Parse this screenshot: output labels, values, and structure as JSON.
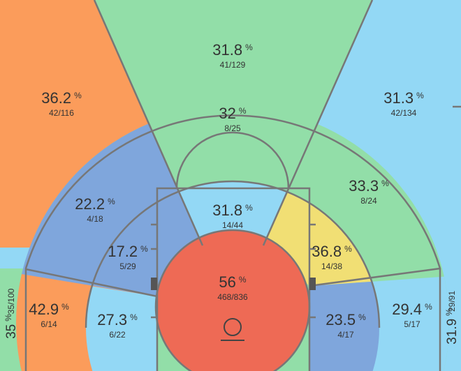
{
  "pct_unit": "%",
  "zones": [
    {
      "pct": 31.8,
      "made_att": "41/129"
    },
    {
      "pct": 36.2,
      "made_att": "42/116"
    },
    {
      "pct": 31.3,
      "made_att": "42/134"
    },
    {
      "pct": 32,
      "made_att": "8/25"
    },
    {
      "pct": 22.2,
      "made_att": "4/18"
    },
    {
      "pct": 33.3,
      "made_att": "8/24"
    },
    {
      "pct": 31.8,
      "made_att": "14/44"
    },
    {
      "pct": 17.2,
      "made_att": "5/29"
    },
    {
      "pct": 36.8,
      "made_att": "14/38"
    },
    {
      "pct": 56,
      "made_att": "468/836"
    },
    {
      "pct": 42.9,
      "made_att": "6/14"
    },
    {
      "pct": 27.3,
      "made_att": "6/22"
    },
    {
      "pct": 23.5,
      "made_att": "4/17"
    },
    {
      "pct": 29.4,
      "made_att": "5/17"
    },
    {
      "pct": 35,
      "made_att": "35/100"
    },
    {
      "pct": 31.9,
      "made_att": "29/91"
    }
  ]
}
